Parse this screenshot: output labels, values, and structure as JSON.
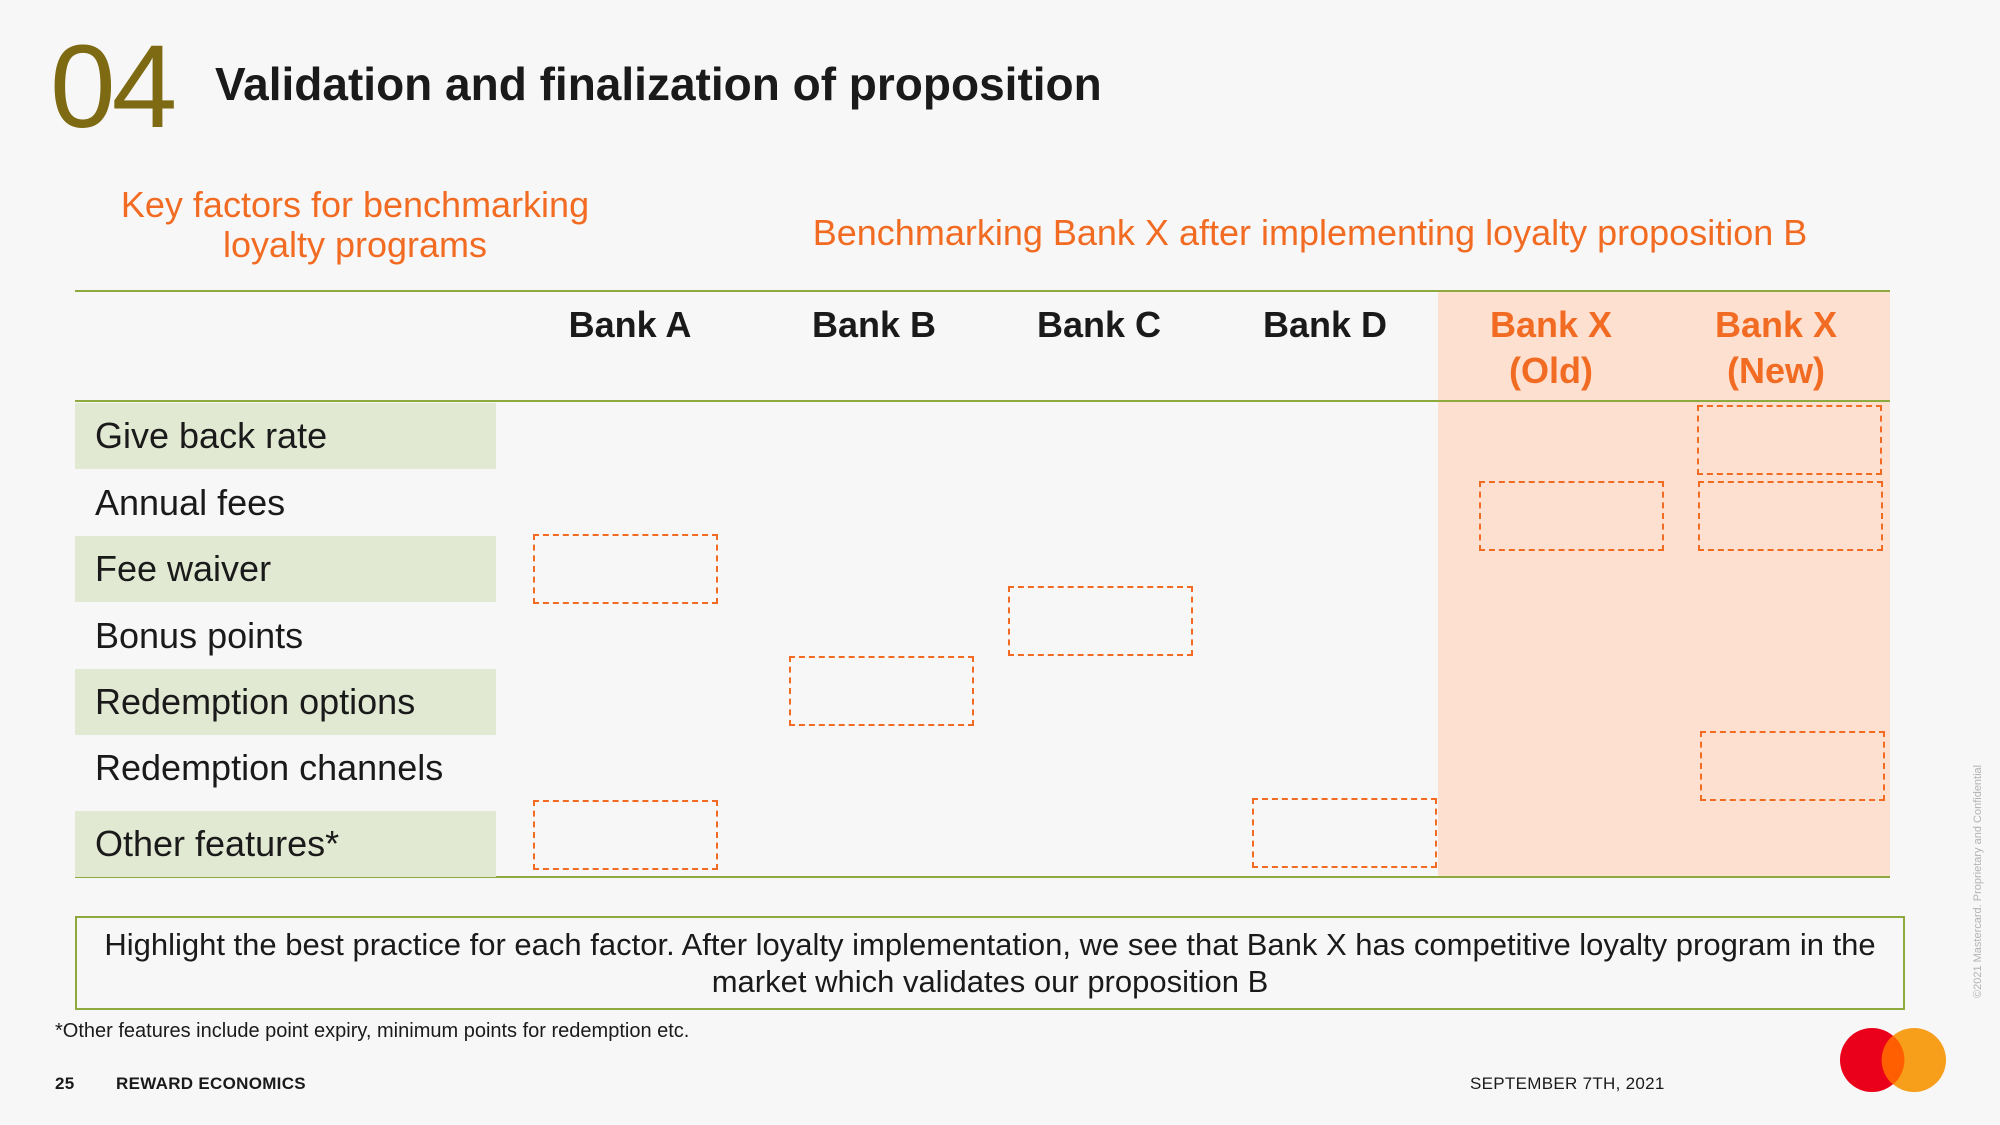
{
  "header": {
    "section_number": "04",
    "title": "Validation and finalization of proposition"
  },
  "headings": {
    "left": "Key factors for benchmarking loyalty programs",
    "right": "Benchmarking Bank X after implementing loyalty proposition B"
  },
  "table": {
    "columns": [
      "Bank A",
      "Bank B",
      "Bank C",
      "Bank D",
      "Bank X (Old)",
      "Bank X (New)"
    ],
    "column_lines": [
      [
        "Bank A"
      ],
      [
        "Bank B"
      ],
      [
        "Bank C"
      ],
      [
        "Bank D"
      ],
      [
        "Bank X",
        "(Old)"
      ],
      [
        "Bank X",
        "(New)"
      ]
    ],
    "rows": [
      "Give back rate",
      "Annual fees",
      "Fee waiver",
      "Bonus points",
      "Redemption options",
      "Redemption channels",
      "Other features*"
    ],
    "highlighted_cells": [
      {
        "row": "Give back rate",
        "column": "Bank X (New)"
      },
      {
        "row": "Annual fees",
        "column": "Bank X (Old)"
      },
      {
        "row": "Annual fees",
        "column": "Bank X (New)"
      },
      {
        "row": "Fee waiver",
        "column": "Bank A"
      },
      {
        "row": "Bonus points",
        "column": "Bank C"
      },
      {
        "row": "Redemption options",
        "column": "Bank B"
      },
      {
        "row": "Redemption channels",
        "column": "Bank X (New)"
      },
      {
        "row": "Other features*",
        "column": "Bank A"
      },
      {
        "row": "Other features*",
        "column": "Bank D"
      }
    ]
  },
  "callout": "Highlight the best practice for each factor. After loyalty implementation, we see that Bank X has competitive loyalty program in the market which validates our proposition B",
  "footnote": "*Other features include point expiry, minimum points for redemption etc.",
  "footer": {
    "page_number": "25",
    "section": "REWARD ECONOMICS",
    "date": "SEPTEMBER 7TH, 2021"
  },
  "confidential_note": "©2021 Mastercard. Proprietary and Confidential",
  "colors": {
    "accent_orange": "#f26b22",
    "section_number": "#7d6a12",
    "rule_green": "#8eaa3e",
    "row_shading": "#e2e9d3",
    "highlight_column": "#fde0d0",
    "logo_red": "#eb001b",
    "logo_yellow": "#f79e1b"
  }
}
